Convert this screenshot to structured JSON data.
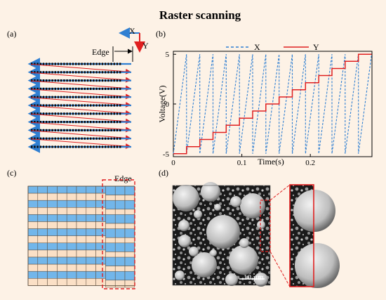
{
  "figure": {
    "title": "Raster scanning",
    "panel_labels": [
      "(a)",
      "(b)",
      "(c)",
      "(d)"
    ],
    "edge_label": "Edge",
    "axis_x_arrow": "X",
    "axis_y_arrow": "Y",
    "scale_bar": "10 µm",
    "colors": {
      "blue": "#2f7fd2",
      "red": "#e02020",
      "cell_blue": "#72b6ea",
      "cell_peach": "#fbe0c6",
      "background": "#fdf2e6"
    }
  },
  "chart_data": {
    "type": "line",
    "title": "",
    "xlabel": "Time(s)",
    "ylabel": "Voltage(V)",
    "xlim": [
      0,
      0.29
    ],
    "ylim": [
      -5.3,
      5.3
    ],
    "xticks": [
      0,
      0.1,
      0.2
    ],
    "yticks": [
      -5,
      0,
      5
    ],
    "legend_position": "top",
    "series": [
      {
        "name": "X",
        "style": "dashed",
        "color": "#2f7fd2",
        "description_points": "sawtooth between -5 and 5",
        "period_s": 0.0193,
        "periods": 15,
        "values": [
          -5,
          5
        ]
      },
      {
        "name": "Y",
        "style": "solid",
        "color": "#e02020",
        "steps_x": [
          0,
          0.0193,
          0.0386,
          0.0579,
          0.0772,
          0.0965,
          0.1158,
          0.1351,
          0.1544,
          0.1737,
          0.193,
          0.2123,
          0.2316,
          0.2509,
          0.2702,
          0.2895
        ],
        "steps_y": [
          -5,
          -4.29,
          -3.57,
          -2.86,
          -2.14,
          -1.43,
          -0.71,
          0,
          0.71,
          1.43,
          2.14,
          2.86,
          3.57,
          4.29,
          5,
          5
        ]
      }
    ]
  }
}
